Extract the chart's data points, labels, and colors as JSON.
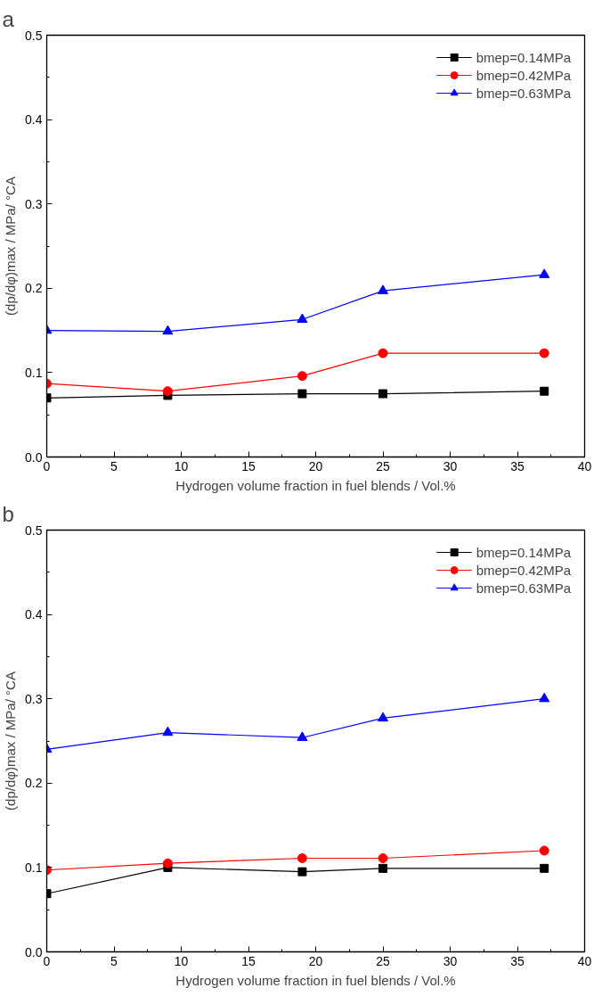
{
  "chart_data": [
    {
      "type": "line",
      "title": "a",
      "xlabel": "Hydrogen volume fraction in fuel blends / Vol.%",
      "ylabel": "(dp/dφ)max / MPa/ °CA",
      "x": [
        0,
        9,
        19,
        25,
        37
      ],
      "xlim": [
        0,
        40
      ],
      "xticks": [
        0,
        5,
        10,
        15,
        20,
        25,
        30,
        35,
        40
      ],
      "ylim": [
        0,
        0.5
      ],
      "yticks": [
        {
          "value": 0,
          "label": "0.0"
        },
        0.1,
        0.2,
        0.3,
        0.4,
        0.5
      ],
      "grid": false,
      "legend": "top right",
      "line_style": "solid",
      "series": [
        {
          "name": "bmep=0.14MPa",
          "color": "#000000",
          "marker": "square",
          "values": [
            0.07,
            0.073,
            0.075,
            0.075,
            0.078
          ]
        },
        {
          "name": "bmep=0.42MPa",
          "color": "#ff0000",
          "marker": "circle",
          "values": [
            0.087,
            0.078,
            0.096,
            0.123,
            0.123
          ]
        },
        {
          "name": "bmep=0.63MPa",
          "color": "#0000ff",
          "marker": "triangle",
          "values": [
            0.15,
            0.149,
            0.163,
            0.197,
            0.216
          ]
        }
      ]
    },
    {
      "type": "line",
      "title": "b",
      "xlabel": "Hydrogen volume fraction in fuel blends / Vol.%",
      "ylabel": "(dp/dφ)max / MPa/ °CA",
      "x": [
        0,
        9,
        19,
        25,
        37
      ],
      "xlim": [
        0,
        40
      ],
      "xticks": [
        0,
        5,
        10,
        15,
        20,
        25,
        30,
        35,
        40
      ],
      "ylim": [
        0,
        0.5
      ],
      "yticks": [
        {
          "value": 0,
          "label": "0.0"
        },
        0.1,
        0.2,
        0.3,
        0.4,
        0.5
      ],
      "grid": false,
      "legend": "top right",
      "line_style": "solid",
      "series": [
        {
          "name": "bmep=0.14MPa",
          "color": "#000000",
          "marker": "square",
          "values": [
            0.069,
            0.1,
            0.095,
            0.099,
            0.099
          ]
        },
        {
          "name": "bmep=0.42MPa",
          "color": "#ff0000",
          "marker": "circle",
          "values": [
            0.097,
            0.105,
            0.111,
            0.111,
            0.12
          ]
        },
        {
          "name": "bmep=0.63MPa",
          "color": "#0000ff",
          "marker": "triangle",
          "values": [
            0.24,
            0.26,
            0.254,
            0.277,
            0.3
          ]
        }
      ]
    }
  ]
}
